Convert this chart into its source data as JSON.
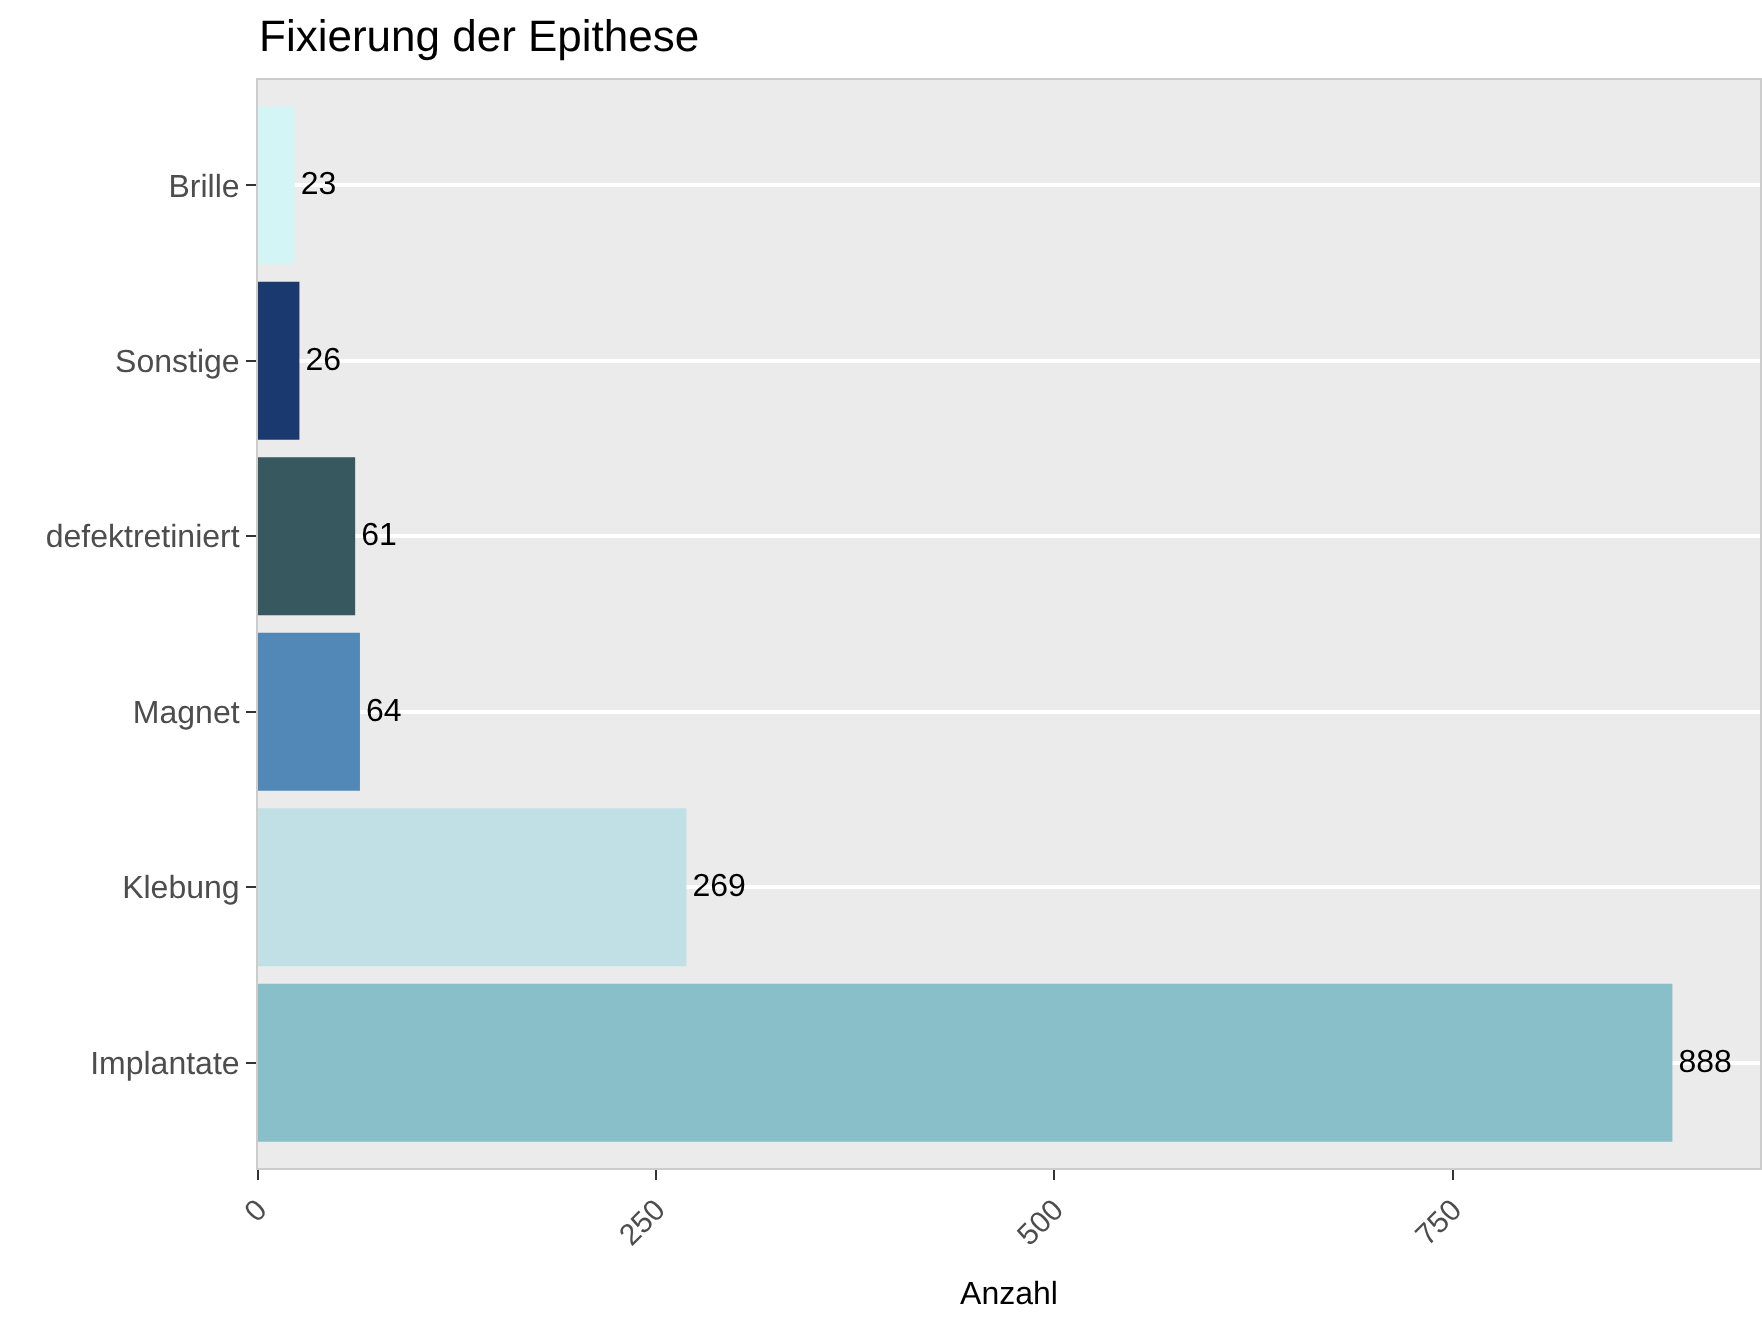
{
  "chart_data": {
    "type": "bar",
    "orientation": "horizontal",
    "title": "Fixierung der Epithese",
    "xlabel": "Anzahl",
    "categories": [
      "Brille",
      "Sonstige",
      "defektretiniert",
      "Magnet",
      "Klebung",
      "Implantate"
    ],
    "values": [
      23,
      26,
      61,
      64,
      269,
      888
    ],
    "colors": [
      "#d4f5f5",
      "#1a396e",
      "#36585e",
      "#5288b8",
      "#c0e0e6",
      "#88bfc8"
    ],
    "xlim": [
      0,
      943
    ],
    "xticks": [
      0,
      250,
      500,
      750
    ],
    "grid": "y",
    "data_labels": true
  }
}
